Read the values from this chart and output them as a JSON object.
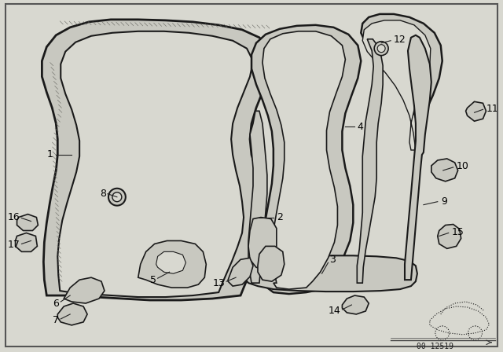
{
  "bg_color": "#d8d8d0",
  "line_color": "#1a1a1a",
  "fill_light": "#c8c8c0",
  "fill_white": "#e8e8e0",
  "diagram_id": "00 12519",
  "fig_width": 6.4,
  "fig_height": 4.48,
  "dpi": 100,
  "labels": {
    "1": [
      90,
      198,
      70,
      198
    ],
    "2": [
      330,
      272,
      348,
      272
    ],
    "3": [
      400,
      310,
      408,
      296
    ],
    "4": [
      430,
      162,
      448,
      162
    ],
    "5": [
      208,
      348,
      192,
      354
    ],
    "6": [
      88,
      390,
      75,
      396
    ],
    "7": [
      88,
      408,
      75,
      414
    ],
    "8": [
      152,
      255,
      135,
      248
    ],
    "9": [
      548,
      262,
      562,
      258
    ],
    "10": [
      548,
      220,
      562,
      216
    ],
    "11": [
      590,
      148,
      604,
      144
    ],
    "12": [
      494,
      65,
      508,
      58
    ],
    "13": [
      298,
      360,
      284,
      366
    ],
    "14": [
      448,
      396,
      435,
      402
    ],
    "15": [
      562,
      302,
      576,
      298
    ],
    "16": [
      38,
      286,
      24,
      282
    ],
    "17": [
      38,
      306,
      24,
      312
    ]
  }
}
